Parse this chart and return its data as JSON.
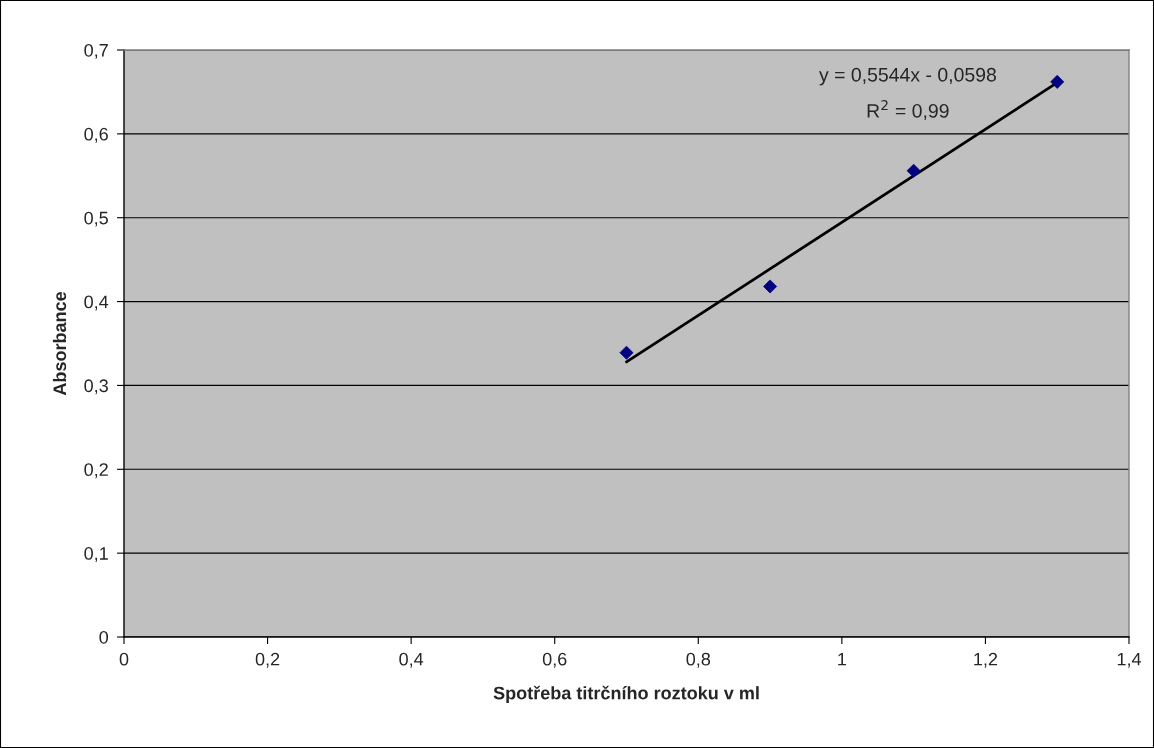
{
  "chart_data": {
    "type": "scatter",
    "xlabel": "Spotřeba titrčního roztoku v ml",
    "ylabel": "Absorbance",
    "x": [
      0.7,
      0.9,
      1.1,
      1.3
    ],
    "series": [
      {
        "color": "#000080",
        "marker": "diamond",
        "values": [
          0.339,
          0.418,
          0.556,
          0.662
        ]
      },
      {
        "type": "line",
        "color": "#000000",
        "marker": "none",
        "line_style": "solid",
        "x": [
          0.7,
          1.3
        ],
        "values": [
          0.328,
          0.661
        ]
      }
    ],
    "annotations": [
      "y = 0,5544x - 0,0598",
      "R$^{2}$ = 0,99"
    ],
    "xlim": [
      0,
      1.4
    ],
    "xticks": [
      0,
      {
        "value": 0.2,
        "label": "0,2"
      },
      {
        "value": 0.4,
        "label": "0,4"
      },
      {
        "value": 0.6,
        "label": "0,6"
      },
      {
        "value": 0.8,
        "label": "0,8"
      },
      1,
      {
        "value": 1.2,
        "label": "1,2"
      },
      {
        "value": 1.4,
        "label": "1,4"
      }
    ],
    "ylim": [
      0,
      0.7
    ],
    "yticks": [
      0,
      {
        "value": 0.1,
        "label": "0,1"
      },
      {
        "value": 0.2,
        "label": "0,2"
      },
      {
        "value": 0.3,
        "label": "0,3"
      },
      {
        "value": 0.4,
        "label": "0,4"
      },
      {
        "value": 0.5,
        "label": "0,5"
      },
      {
        "value": 0.6,
        "label": "0,6"
      },
      {
        "value": 0.7,
        "label": "0,7"
      }
    ],
    "grid": "y",
    "legend": false
  }
}
